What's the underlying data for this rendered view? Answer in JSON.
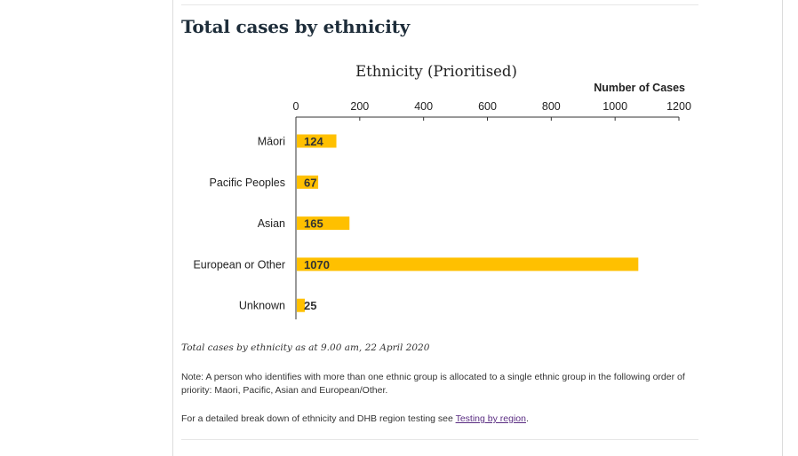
{
  "section": {
    "title": "Total cases by ethnicity"
  },
  "chart_data": {
    "type": "bar",
    "orientation": "horizontal",
    "title": "Ethnicity (Prioritised)",
    "xlabel": "Number of Cases",
    "ylabel": "",
    "xlim": [
      0,
      1200
    ],
    "ticks": [
      0,
      200,
      400,
      600,
      800,
      1000,
      1200
    ],
    "categories": [
      "Māori",
      "Pacific Peoples",
      "Asian",
      "European or Other",
      "Unknown"
    ],
    "values": [
      124,
      67,
      165,
      1070,
      25
    ],
    "bar_color": "#ffc000",
    "label_color": "#333333",
    "grid": false,
    "axis_position": "top"
  },
  "caption": "Total cases by ethnicity as at 9.00 am, 22 April 2020",
  "note": "Note: A person who identifies with more than one ethnic group is allocated to a single ethnic group in the following order of priority: Maori, Pacific, Asian and European/Other.",
  "detail": {
    "text": "For a detailed break down of ethnicity and DHB region testing see ",
    "link_label": "Testing by region",
    "suffix": "."
  }
}
